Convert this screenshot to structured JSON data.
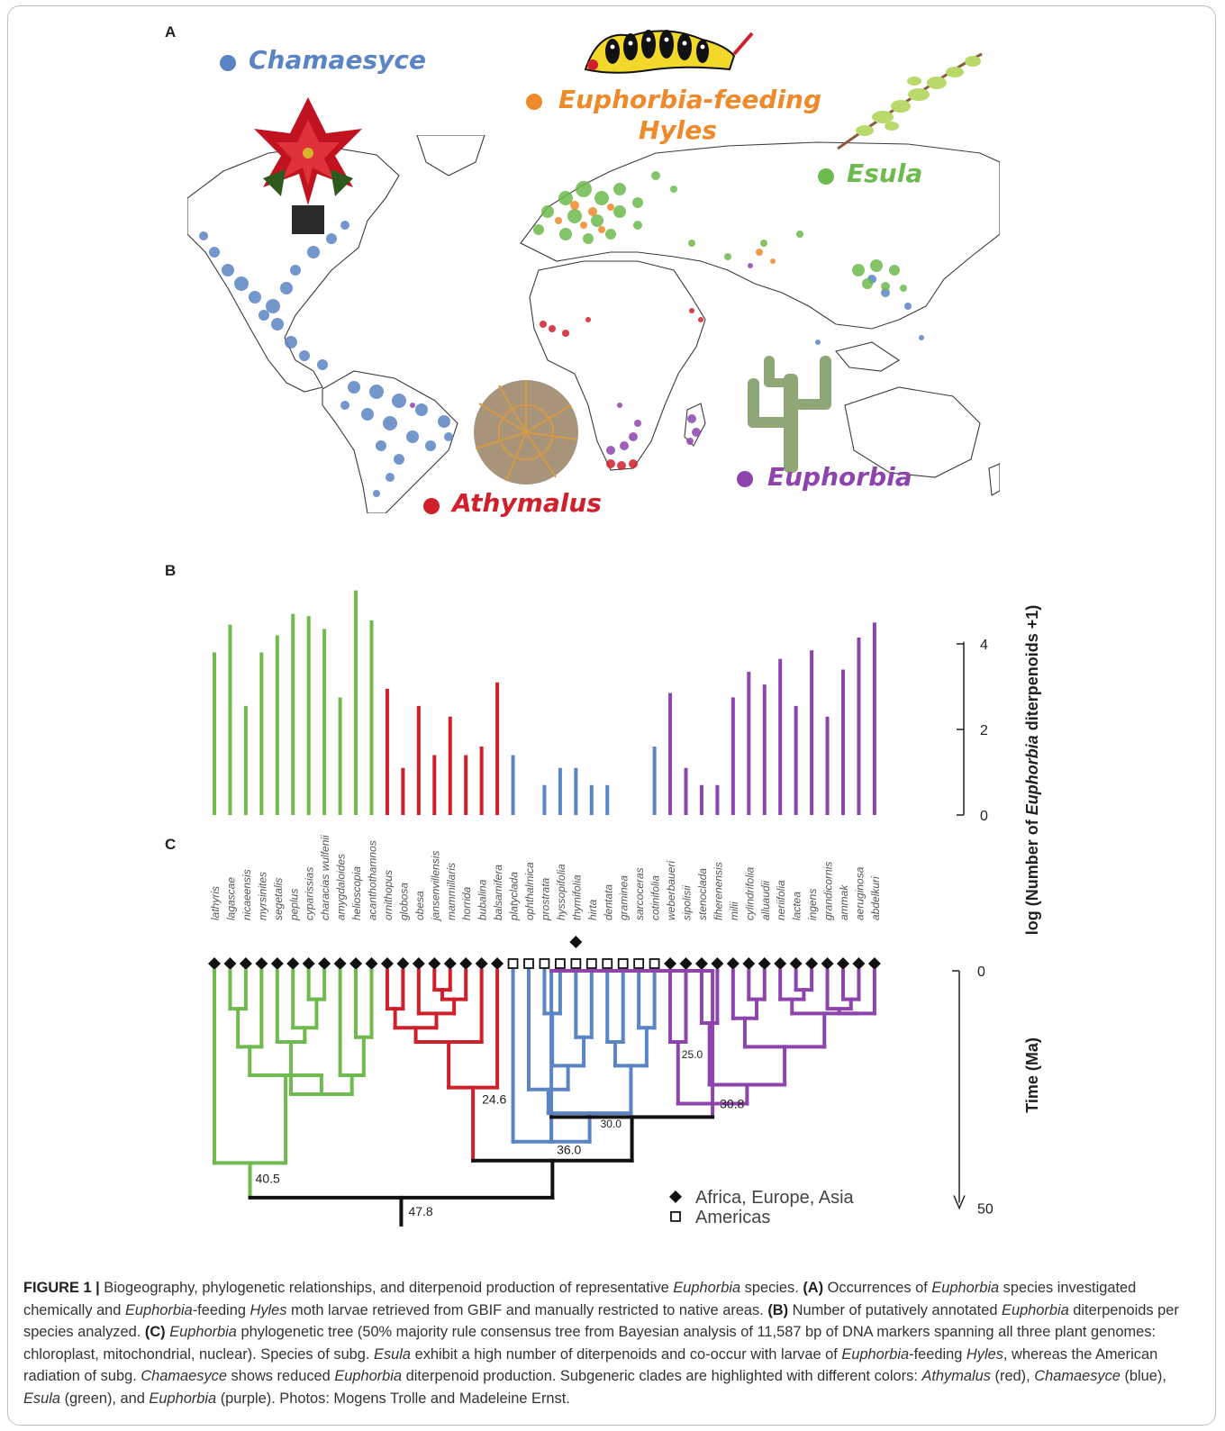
{
  "panels": {
    "a": "A",
    "b": "B",
    "c": "C"
  },
  "legend_a": {
    "chamaesyce": {
      "label": "Chamaesyce",
      "color": "#5b84c4"
    },
    "hyles_line1": {
      "label": "Euphorbia-feeding",
      "color": "#ee8a2a"
    },
    "hyles_line2": {
      "label": "Hyles",
      "color": "#ee8a2a"
    },
    "esula": {
      "label": "Esula",
      "color": "#6fba4f"
    },
    "euphorbia": {
      "label": "Euphorbia",
      "color": "#8e44ad"
    },
    "athymalus": {
      "label": "Athymalus",
      "color": "#d0202b"
    }
  },
  "icons": [
    "poinsettia-photo",
    "caterpillar-photo",
    "euphorbia-sprig-photo",
    "globe-cactus-photo",
    "cactus-like-euphorbia-photo",
    "world-map"
  ],
  "chart_data": {
    "type": "bar",
    "ylabel_prefix": "log (Number of ",
    "ylabel_italic": "Euphorbia",
    "ylabel_suffix": " diterpenoids +1)",
    "ylim": [
      0,
      5.3
    ],
    "yticks": [
      "4",
      "2",
      "0"
    ],
    "species": [
      "lathyris",
      "lagascae",
      "nicaeensis",
      "myrsinites",
      "segetalis",
      "peplus",
      "cyparissias",
      "characias wulfenii",
      "amygdaloides",
      "helioscopia",
      "acanthothamnos",
      "ornithopus",
      "globosa",
      "obesa",
      "jansenvillensis",
      "mammillaris",
      "horrida",
      "bubalina",
      "balsamifera",
      "platyclada",
      "ophthalmica",
      "prostrata",
      "hyssopifolia",
      "thymifolia",
      "hirta",
      "dentata",
      "graminea",
      "sarcoceras",
      "cotinifolia",
      "weberbaueri",
      "sipolisii",
      "stenoclada",
      "fiherenensis",
      "milii",
      "cylindrifolia",
      "alluaudii",
      "neriifolia",
      "lactea",
      "ingens",
      "grandicornis",
      "ammak",
      "aeruginosa",
      "abdelkuri"
    ],
    "values": [
      3.8,
      4.45,
      2.55,
      3.8,
      4.2,
      4.7,
      4.65,
      4.35,
      2.75,
      5.25,
      4.55,
      2.95,
      1.1,
      2.55,
      1.4,
      2.3,
      1.4,
      1.6,
      3.1,
      1.4,
      0,
      0.7,
      1.1,
      1.1,
      0.7,
      0.7,
      0,
      0,
      1.6,
      2.85,
      1.1,
      0.7,
      0.7,
      2.75,
      3.35,
      3.05,
      3.65,
      2.55,
      3.85,
      2.3,
      3.4,
      4.15,
      4.5
    ],
    "clade_of_species": [
      "Esula",
      "Esula",
      "Esula",
      "Esula",
      "Esula",
      "Esula",
      "Esula",
      "Esula",
      "Esula",
      "Esula",
      "Esula",
      "Athymalus",
      "Athymalus",
      "Athymalus",
      "Athymalus",
      "Athymalus",
      "Athymalus",
      "Athymalus",
      "Athymalus",
      "Chamaesyce",
      "Chamaesyce",
      "Chamaesyce",
      "Chamaesyce",
      "Chamaesyce",
      "Chamaesyce",
      "Chamaesyce",
      "Chamaesyce",
      "Chamaesyce",
      "Chamaesyce",
      "Euphorbia",
      "Euphorbia",
      "Euphorbia",
      "Euphorbia",
      "Euphorbia",
      "Euphorbia",
      "Euphorbia",
      "Euphorbia",
      "Euphorbia",
      "Euphorbia",
      "Euphorbia",
      "Euphorbia",
      "Euphorbia",
      "Euphorbia"
    ],
    "clade_colors": {
      "Esula": "#6fba4f",
      "Athymalus": "#d0202b",
      "Chamaesyce": "#5b84c4",
      "Euphorbia": "#8e44ad"
    }
  },
  "tree": {
    "time_label": "Time (Ma)",
    "time_ticks": [
      "0",
      "50"
    ],
    "node_labels": [
      "47.8",
      "40.5",
      "24.6",
      "36.0",
      "30.0",
      "30.8",
      "25.0"
    ],
    "markers": [
      "filled",
      "filled",
      "filled",
      "filled",
      "filled",
      "filled",
      "filled",
      "filled",
      "filled",
      "filled",
      "filled",
      "filled",
      "filled",
      "filled",
      "filled",
      "filled",
      "filled",
      "filled",
      "filled",
      "open",
      "open",
      "open",
      "open",
      "open",
      "open",
      "open",
      "open",
      "open",
      "open",
      "filled",
      "filled",
      "filled",
      "filled",
      "filled",
      "filled",
      "filled",
      "filled",
      "filled",
      "filled",
      "filled",
      "filled",
      "filled",
      "filled"
    ],
    "extra_marker_species": "thymifolia",
    "legend": {
      "filled": "Africa, Europe, Asia",
      "open": "Americas"
    }
  },
  "caption": {
    "fig": "FIGURE 1 |",
    "t1": " Biogeography, phylogenetic relationships, and diterpenoid production of representative ",
    "t2": "Euphorbia",
    "t3": " species. ",
    "t4": "(A)",
    "t5": " Occurrences of ",
    "t6": "Euphorbia",
    "t7": " species investigated chemically and ",
    "t8": "Euphorbia",
    "t9": "-feeding ",
    "t10": "Hyles",
    "t11": " moth larvae retrieved from GBIF and manually restricted to native areas. ",
    "t12": "(B)",
    "t13": " Number of putatively annotated ",
    "t14": "Euphorbia",
    "t15": " diterpenoids per species analyzed. ",
    "t16": "(C)",
    "t17": " ",
    "t18": "Euphorbia",
    "t19": " phylogenetic tree (50% majority rule consensus tree from Bayesian analysis of 11,587 bp of DNA markers spanning all three plant genomes: chloroplast, mitochondrial, nuclear). Species of subg. ",
    "t20": "Esula",
    "t21": " exhibit a high number of diterpenoids and co-occur with larvae of ",
    "t22": "Euphorbia",
    "t23": "-feeding ",
    "t24": "Hyles",
    "t25": ", whereas the American radiation of subg. ",
    "t26": "Chamaesyce",
    "t27": " shows reduced ",
    "t28": "Euphorbia",
    "t29": " diterpenoid production. Subgeneric clades are highlighted with different colors: ",
    "t30": "Athymalus",
    "t31": " (red), ",
    "t32": "Chamaesyce",
    "t33": " (blue), ",
    "t34": "Esula",
    "t35": " (green), and ",
    "t36": "Euphorbia",
    "t37": " (purple). Photos: Mogens Trolle and Madeleine Ernst."
  }
}
